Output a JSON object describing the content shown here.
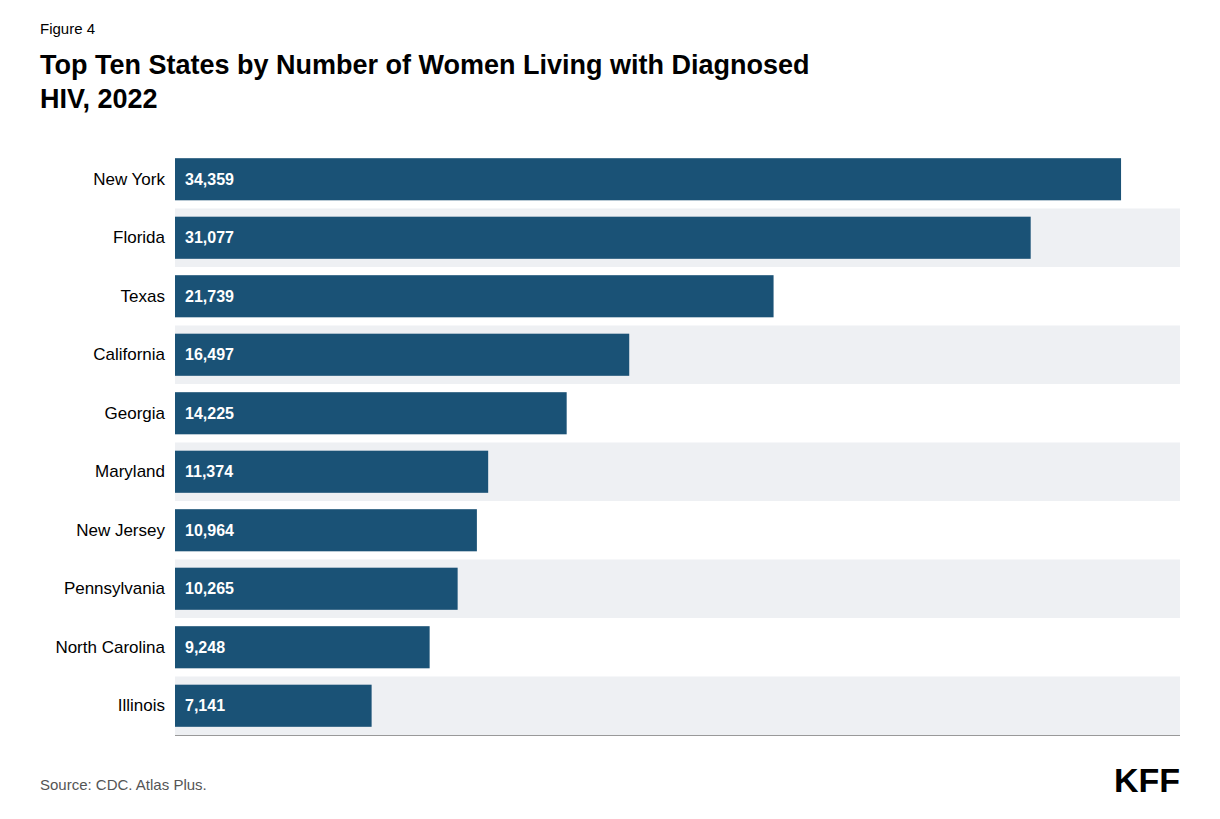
{
  "chart_data": {
    "type": "bar",
    "orientation": "horizontal",
    "title": "Top Ten States by Number of Women Living with Diagnosed\nHIV, 2022",
    "annotations": [
      "Figure 4",
      "Source: CDC. Atlas Plus.",
      "KFF"
    ],
    "categories": [
      "New York",
      "Florida",
      "Texas",
      "California",
      "Georgia",
      "Maryland",
      "New Jersey",
      "Pennsylvania",
      "North Carolina",
      "Illinois"
    ],
    "values": [
      34359,
      31077,
      21739,
      16497,
      14225,
      11374,
      10964,
      10265,
      9248,
      7141
    ],
    "value_labels": [
      "34,359",
      "31,077",
      "21,739",
      "16,497",
      "14,225",
      "11,374",
      "10,964",
      "10,265",
      "9,248",
      "7,141"
    ],
    "data_labels": true,
    "color": "#1a5276",
    "xlim": [
      0,
      36500
    ],
    "tick_labels": "y",
    "grid": false
  }
}
